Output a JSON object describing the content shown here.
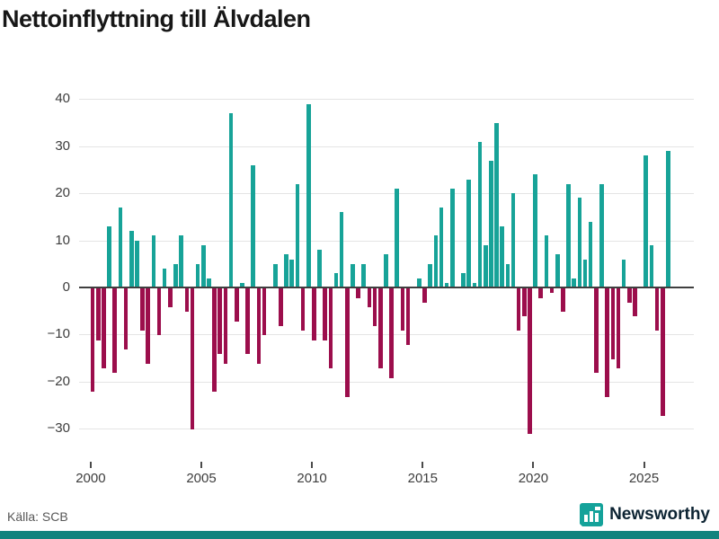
{
  "title": "Nettoinflyttning till Älvdalen",
  "source": "Källa: SCB",
  "logo": {
    "text": "Newsworthy",
    "icon": "bar-chart-bubble-icon"
  },
  "colors": {
    "positive": "#17a398",
    "negative": "#9c0e4c",
    "grid": "#e4e4e4",
    "zero_axis": "#3f3f3f",
    "tick_text": "#3d3d3d",
    "title_text": "#171717",
    "source_text": "#575757",
    "logo_teal": "#14a29a",
    "logo_text": "#0d2433",
    "footer_bar": "#11837d"
  },
  "chart_data": {
    "type": "bar",
    "title": "Nettoinflyttning till Älvdalen",
    "frequency": "quarterly",
    "start_year": 2000,
    "start_quarter": 1,
    "values": [
      -22,
      -11,
      -17,
      13,
      -18,
      17,
      -13,
      12,
      10,
      -9,
      -16,
      11,
      -10,
      4,
      -4,
      5,
      11,
      -5,
      -30,
      5,
      9,
      2,
      -22,
      -14,
      -16,
      37,
      -7,
      1,
      -14,
      26,
      -16,
      -10,
      0,
      5,
      -8,
      7,
      6,
      22,
      -9,
      39,
      -11,
      8,
      -11,
      -17,
      3,
      16,
      -23,
      5,
      -2,
      5,
      -4,
      -8,
      -17,
      7,
      -19,
      21,
      -9,
      -12,
      0,
      2,
      -3,
      5,
      11,
      17,
      1,
      21,
      0,
      3,
      23,
      1,
      31,
      9,
      27,
      35,
      13,
      5,
      20,
      -9,
      -6,
      -31,
      24,
      -2,
      11,
      -1,
      7,
      -5,
      22,
      2,
      19,
      6,
      14,
      -18,
      22,
      -23,
      -15,
      -17,
      6,
      -3,
      -6,
      0,
      28,
      9,
      -9,
      -27,
      29
    ],
    "y_ticks": [
      40,
      30,
      20,
      10,
      0,
      -10,
      -20,
      -30
    ],
    "y_tick_labels": [
      "40",
      "30",
      "20",
      "10",
      "0",
      "−10",
      "−20",
      "−30"
    ],
    "x_tick_years": [
      2000,
      2005,
      2010,
      2015,
      2020,
      2025
    ],
    "x_tick_labels": [
      "2000",
      "2005",
      "2010",
      "2015",
      "2020",
      "2025"
    ],
    "ylim": [
      -33,
      42
    ],
    "grid": true,
    "legend": false
  }
}
